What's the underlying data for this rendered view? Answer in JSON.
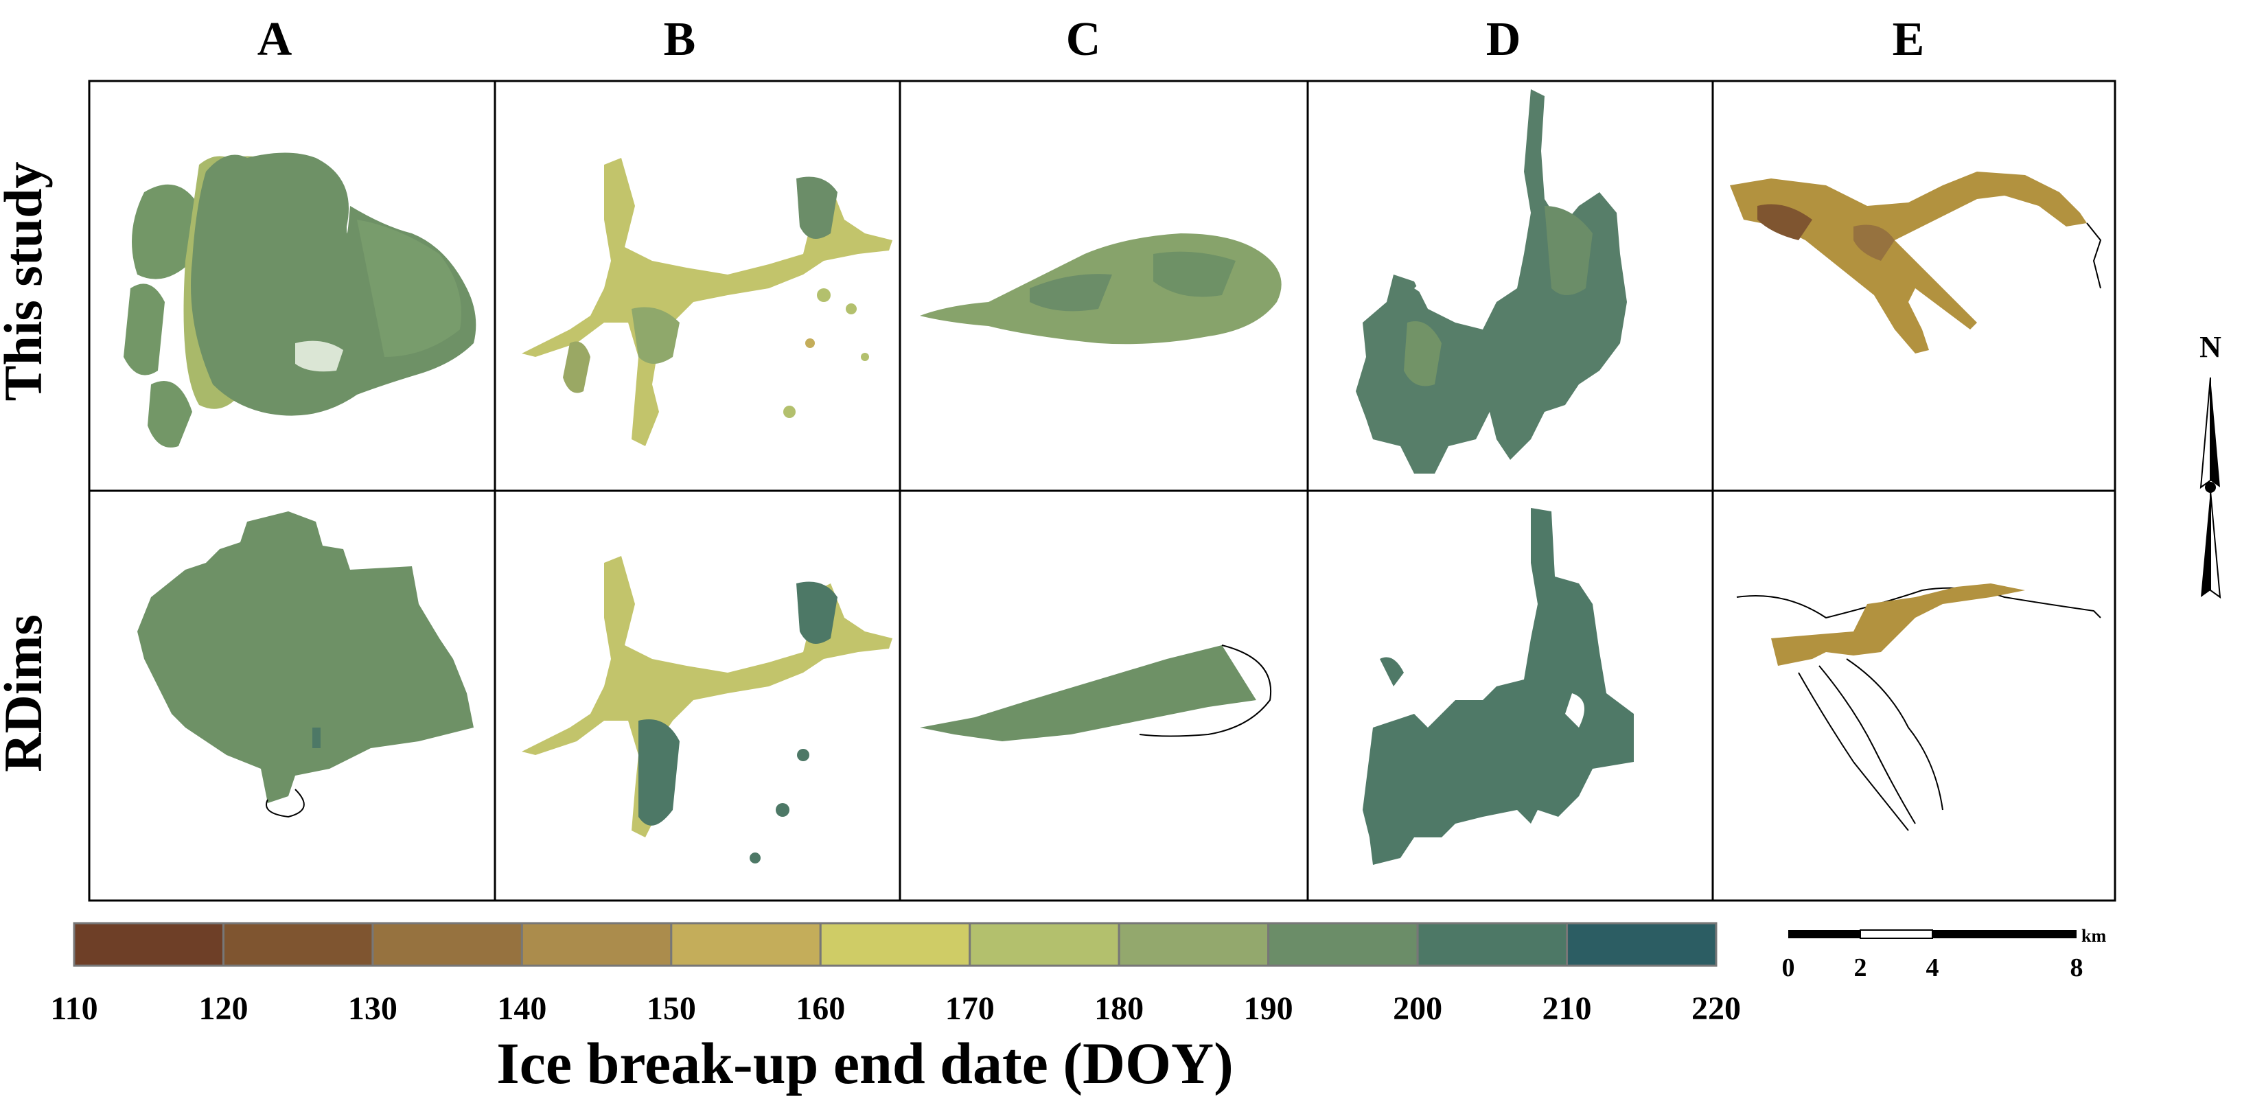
{
  "figure": {
    "columns": [
      "A",
      "B",
      "C",
      "D",
      "E"
    ],
    "rows": [
      "This study",
      "RDims"
    ],
    "colorbar": {
      "ticks": [
        "110",
        "120",
        "130",
        "140",
        "150",
        "160",
        "170",
        "180",
        "190",
        "200",
        "210",
        "220"
      ],
      "colors": [
        "#6e3f27",
        "#7f5530",
        "#96723f",
        "#ab8c4c",
        "#c4ad5a",
        "#cfcc66",
        "#b3c06d",
        "#93a86d",
        "#6b8d68",
        "#4d7866",
        "#2c5d63"
      ],
      "title": "Ice break-up end date (DOY)"
    },
    "scalebar": {
      "ticks": [
        "0",
        "2",
        "4",
        "8"
      ],
      "unit": "km"
    },
    "north_arrow": {
      "letter": "N"
    }
  }
}
